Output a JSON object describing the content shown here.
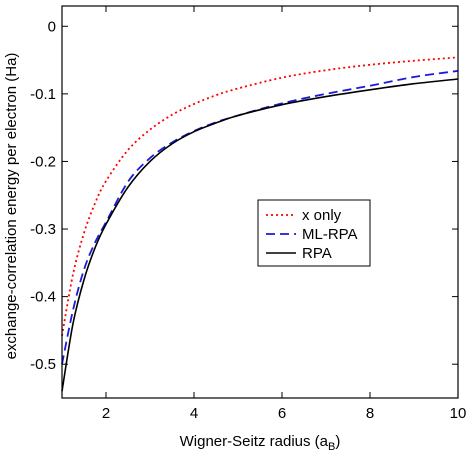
{
  "chart_data": {
    "type": "line",
    "title": "",
    "xlabel": "Wigner-Seitz radius (a",
    "xlabel_sub": "B",
    "xlabel_close": ")",
    "ylabel": "exchange-correlation energy per electron (Ha)",
    "xlim": [
      1,
      10
    ],
    "ylim": [
      -0.55,
      0.03
    ],
    "xticks": [
      2,
      4,
      6,
      8,
      10
    ],
    "yticks": [
      0,
      -0.1,
      -0.2,
      -0.3,
      -0.4,
      -0.5
    ],
    "xtick_labels": [
      "2",
      "4",
      "6",
      "8",
      "10"
    ],
    "ytick_labels": [
      "0",
      "-0.1",
      "-0.2",
      "-0.3",
      "-0.4",
      "-0.5"
    ],
    "grid": false,
    "legend_position": "center-right",
    "series": [
      {
        "name": "x only",
        "color": "#ff0000",
        "style": "dotted",
        "x": [
          1.0,
          1.25,
          1.5,
          1.75,
          2.0,
          2.5,
          3.0,
          3.5,
          4.0,
          4.5,
          5.0,
          6.0,
          7.0,
          8.0,
          9.0,
          10.0
        ],
        "y": [
          -0.458,
          -0.367,
          -0.306,
          -0.262,
          -0.229,
          -0.183,
          -0.153,
          -0.131,
          -0.115,
          -0.102,
          -0.092,
          -0.076,
          -0.065,
          -0.057,
          -0.051,
          -0.046
        ]
      },
      {
        "name": "ML-RPA",
        "color": "#1a1adc",
        "style": "dashed",
        "x": [
          1.0,
          1.25,
          1.5,
          1.75,
          2.0,
          2.5,
          3.0,
          3.5,
          4.0,
          4.5,
          5.0,
          6.0,
          7.0,
          8.0,
          9.0,
          10.0
        ],
        "y": [
          -0.5,
          -0.42,
          -0.36,
          -0.32,
          -0.29,
          -0.23,
          -0.195,
          -0.172,
          -0.155,
          -0.142,
          -0.132,
          -0.114,
          -0.1,
          -0.088,
          -0.075,
          -0.066
        ]
      },
      {
        "name": "RPA",
        "color": "#000000",
        "style": "solid",
        "x": [
          1.0,
          1.25,
          1.5,
          1.75,
          2.0,
          2.5,
          3.0,
          3.5,
          4.0,
          4.5,
          5.0,
          6.0,
          7.0,
          8.0,
          9.0,
          10.0
        ],
        "y": [
          -0.54,
          -0.44,
          -0.375,
          -0.328,
          -0.293,
          -0.238,
          -0.2,
          -0.174,
          -0.156,
          -0.143,
          -0.132,
          -0.116,
          -0.104,
          -0.094,
          -0.085,
          -0.078
        ]
      }
    ]
  }
}
